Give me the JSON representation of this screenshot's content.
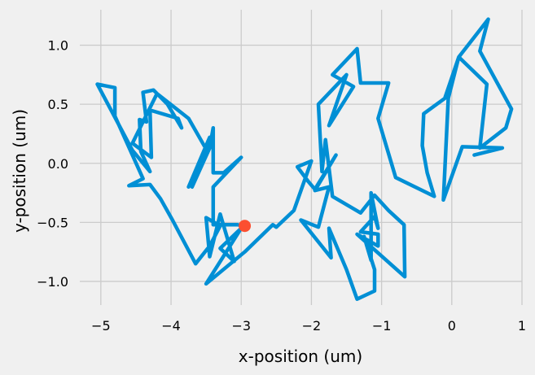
{
  "chart_data": {
    "type": "line",
    "title": "",
    "xlabel": "x-position (um)",
    "ylabel": "y-position (um)",
    "xlim": [
      -5.3,
      1.0
    ],
    "ylim": [
      -1.2,
      1.3
    ],
    "xticks": [
      -5,
      -4,
      -3,
      -2,
      -1,
      0,
      1
    ],
    "yticks": [
      -1.0,
      -0.5,
      0.0,
      0.5,
      1.0
    ],
    "xtick_labels": [
      "−5",
      "−4",
      "−3",
      "−2",
      "−1",
      "0",
      "1"
    ],
    "ytick_labels": [
      "−1.0",
      "−0.5",
      "0.0",
      "0.5",
      "1.0"
    ],
    "grid": true,
    "series": [
      {
        "color": "#008fd5",
        "marker": "none",
        "points": [
          [
            0.32,
            0.07
          ],
          [
            0.72,
            0.13
          ],
          [
            0.15,
            0.14
          ],
          [
            -0.12,
            -0.31
          ],
          [
            -0.05,
            0.55
          ],
          [
            0.1,
            0.9
          ],
          [
            0.52,
            1.22
          ],
          [
            0.4,
            0.95
          ],
          [
            0.85,
            0.46
          ],
          [
            0.77,
            0.3
          ],
          [
            0.4,
            0.13
          ],
          [
            0.5,
            0.67
          ],
          [
            0.1,
            0.9
          ],
          [
            -0.1,
            0.55
          ],
          [
            -0.4,
            0.42
          ],
          [
            -0.42,
            0.15
          ],
          [
            -0.35,
            -0.08
          ],
          [
            -0.25,
            -0.28
          ],
          [
            -0.8,
            -0.12
          ],
          [
            -1.05,
            0.38
          ],
          [
            -0.9,
            0.68
          ],
          [
            -1.3,
            0.68
          ],
          [
            -1.35,
            0.97
          ],
          [
            -1.7,
            0.75
          ],
          [
            -1.4,
            0.65
          ],
          [
            -1.75,
            0.32
          ],
          [
            -1.5,
            0.75
          ],
          [
            -1.9,
            0.5
          ],
          [
            -1.85,
            -0.07
          ],
          [
            -1.8,
            0.2
          ],
          [
            -1.7,
            -0.28
          ],
          [
            -1.3,
            -0.42
          ],
          [
            -1.1,
            -0.27
          ],
          [
            -0.9,
            -0.4
          ],
          [
            -0.68,
            -0.52
          ],
          [
            -0.67,
            -0.96
          ],
          [
            -1.35,
            -0.6
          ],
          [
            -1.05,
            -0.7
          ],
          [
            -1.05,
            -0.6
          ],
          [
            -1.3,
            -0.58
          ],
          [
            -1.1,
            -0.45
          ],
          [
            -1.05,
            -0.55
          ],
          [
            -1.15,
            -0.25
          ],
          [
            -1.15,
            -0.82
          ],
          [
            -1.25,
            -0.62
          ],
          [
            -1.1,
            -0.9
          ],
          [
            -1.1,
            -1.08
          ],
          [
            -1.35,
            -1.15
          ],
          [
            -1.5,
            -0.9
          ],
          [
            -1.75,
            -0.55
          ],
          [
            -1.72,
            -0.8
          ],
          [
            -2.15,
            -0.48
          ],
          [
            -1.9,
            -0.54
          ],
          [
            -1.75,
            -0.2
          ],
          [
            -1.95,
            -0.23
          ],
          [
            -1.65,
            0.07
          ],
          [
            -1.95,
            -0.22
          ],
          [
            -2.05,
            -0.15
          ],
          [
            -2.2,
            -0.03
          ],
          [
            -2.0,
            0.02
          ],
          [
            -2.25,
            -0.4
          ],
          [
            -2.5,
            -0.54
          ],
          [
            -2.55,
            -0.52
          ],
          [
            -2.95,
            -0.75
          ],
          [
            -3.5,
            -1.02
          ],
          [
            -3.0,
            -0.55
          ],
          [
            -3.3,
            -0.72
          ],
          [
            -3.1,
            -0.83
          ],
          [
            -3.3,
            -0.43
          ],
          [
            -3.45,
            -0.79
          ],
          [
            -3.5,
            -0.46
          ],
          [
            -3.3,
            -0.53
          ],
          [
            -3.45,
            -0.7
          ],
          [
            -3.65,
            -0.85
          ],
          [
            -3.98,
            -0.48
          ],
          [
            -4.15,
            -0.3
          ],
          [
            -4.3,
            -0.18
          ],
          [
            -4.6,
            -0.19
          ],
          [
            -4.4,
            -0.13
          ],
          [
            -4.8,
            0.4
          ],
          [
            -4.8,
            0.64
          ],
          [
            -5.05,
            0.67
          ],
          [
            -4.55,
            0.11
          ],
          [
            -4.3,
            -0.07
          ],
          [
            -4.43,
            0.1
          ],
          [
            -4.45,
            0.37
          ],
          [
            -4.35,
            0.35
          ],
          [
            -4.4,
            0.6
          ],
          [
            -4.25,
            0.62
          ],
          [
            -4.05,
            0.5
          ],
          [
            -3.85,
            0.3
          ],
          [
            -3.9,
            0.38
          ],
          [
            -4.3,
            0.45
          ],
          [
            -4.28,
            0.05
          ],
          [
            -4.55,
            0.17
          ],
          [
            -4.2,
            0.59
          ],
          [
            -3.75,
            0.38
          ],
          [
            -3.5,
            0.12
          ],
          [
            -3.75,
            -0.2
          ],
          [
            -3.45,
            0.22
          ],
          [
            -3.7,
            -0.2
          ],
          [
            -3.45,
            0.13
          ],
          [
            -3.4,
            0.3
          ],
          [
            -3.4,
            -0.08
          ],
          [
            -3.25,
            -0.08
          ],
          [
            -3.0,
            0.05
          ],
          [
            -3.4,
            -0.2
          ],
          [
            -3.4,
            -0.52
          ],
          [
            -3.25,
            -0.52
          ],
          [
            -3.05,
            -0.52
          ],
          [
            -2.95,
            -0.53
          ]
        ]
      },
      {
        "color": "#fc4f30",
        "marker": "circle",
        "points": [
          [
            -2.95,
            -0.53
          ]
        ]
      }
    ]
  }
}
